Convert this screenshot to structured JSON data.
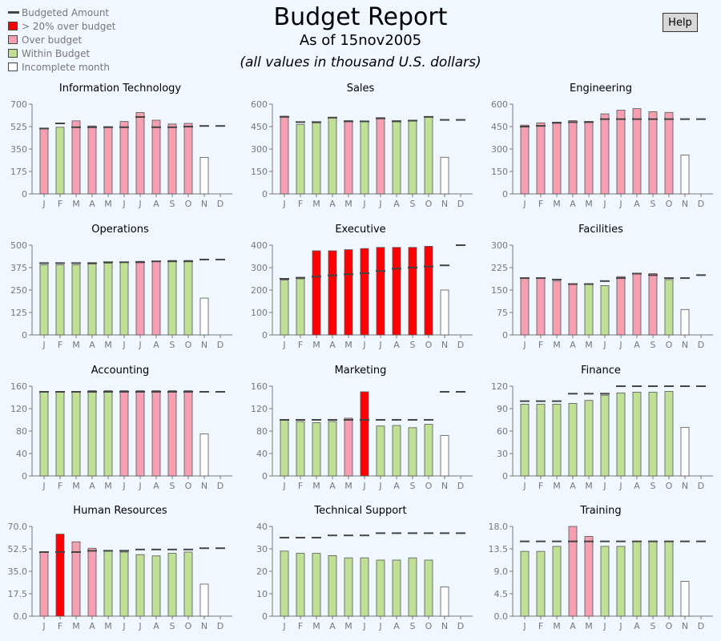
{
  "header": {
    "title": "Budget Report",
    "subtitle": "As of 15nov2005",
    "note": "(all values in thousand U.S. dollars)",
    "help_label": "Help"
  },
  "legend": [
    {
      "label": "Budgeted Amount",
      "kind": "line",
      "color": "#444444"
    },
    {
      "label": "> 20% over budget",
      "kind": "box",
      "color": "#ff0000"
    },
    {
      "label": "Over budget",
      "kind": "box",
      "color": "#f4a0b0"
    },
    {
      "label": "Within Budget",
      "kind": "box",
      "color": "#c0e098"
    },
    {
      "label": "Incomplete month",
      "kind": "box",
      "color": "#ffffff"
    }
  ],
  "chart_data": [
    {
      "type": "bar",
      "title": "Information Technology",
      "categories": [
        "J",
        "F",
        "M",
        "A",
        "M",
        "J",
        "J",
        "A",
        "S",
        "O",
        "N",
        "D"
      ],
      "yticks": [
        "0",
        "175",
        "350",
        "525",
        "700"
      ],
      "ylim": [
        0,
        700
      ],
      "actual": [
        510,
        520,
        570,
        530,
        525,
        565,
        635,
        575,
        545,
        550,
        285,
        null
      ],
      "budget": [
        510,
        550,
        520,
        520,
        520,
        520,
        600,
        520,
        520,
        525,
        530,
        530
      ],
      "status": [
        "over",
        "within",
        "over",
        "over",
        "over",
        "over",
        "over",
        "over",
        "over",
        "over",
        "incomplete",
        null
      ]
    },
    {
      "type": "bar",
      "title": "Sales",
      "categories": [
        "J",
        "F",
        "M",
        "A",
        "M",
        "J",
        "J",
        "A",
        "S",
        "O",
        "N",
        "D"
      ],
      "yticks": [
        "0",
        "150",
        "300",
        "450",
        "600"
      ],
      "ylim": [
        0,
        600
      ],
      "actual": [
        520,
        465,
        475,
        510,
        490,
        485,
        510,
        490,
        490,
        515,
        245,
        null
      ],
      "budget": [
        515,
        480,
        480,
        510,
        485,
        485,
        505,
        485,
        490,
        515,
        495,
        495
      ],
      "status": [
        "over",
        "within",
        "within",
        "within",
        "over",
        "within",
        "over",
        "within",
        "within",
        "within",
        "incomplete",
        null
      ]
    },
    {
      "type": "bar",
      "title": "Engineering",
      "categories": [
        "J",
        "F",
        "M",
        "A",
        "M",
        "J",
        "J",
        "A",
        "S",
        "O",
        "N",
        "D"
      ],
      "yticks": [
        "0",
        "150",
        "300",
        "450",
        "600"
      ],
      "ylim": [
        0,
        600
      ],
      "actual": [
        460,
        475,
        480,
        490,
        485,
        535,
        560,
        570,
        550,
        545,
        260,
        null
      ],
      "budget": [
        450,
        455,
        475,
        480,
        480,
        500,
        500,
        500,
        500,
        500,
        500,
        500
      ],
      "status": [
        "over",
        "over",
        "over",
        "over",
        "over",
        "over",
        "over",
        "over",
        "over",
        "over",
        "incomplete",
        null
      ]
    },
    {
      "type": "bar",
      "title": "Operations",
      "categories": [
        "J",
        "F",
        "M",
        "A",
        "M",
        "J",
        "J",
        "A",
        "S",
        "O",
        "N",
        "D"
      ],
      "yticks": [
        "0",
        "125",
        "250",
        "375",
        "500"
      ],
      "ylim": [
        0,
        500
      ],
      "actual": [
        390,
        390,
        390,
        395,
        400,
        405,
        410,
        410,
        415,
        415,
        205,
        null
      ],
      "budget": [
        400,
        400,
        400,
        400,
        405,
        405,
        405,
        410,
        410,
        410,
        420,
        420
      ],
      "status": [
        "within",
        "within",
        "within",
        "within",
        "within",
        "within",
        "over",
        "over",
        "within",
        "within",
        "incomplete",
        null
      ]
    },
    {
      "type": "bar",
      "title": "Executive",
      "categories": [
        "J",
        "F",
        "M",
        "A",
        "M",
        "J",
        "J",
        "A",
        "S",
        "O",
        "N",
        "D"
      ],
      "yticks": [
        "0",
        "100",
        "200",
        "300",
        "400"
      ],
      "ylim": [
        0,
        400
      ],
      "actual": [
        245,
        250,
        375,
        375,
        380,
        385,
        390,
        390,
        390,
        395,
        200,
        null
      ],
      "budget": [
        250,
        255,
        260,
        265,
        270,
        275,
        285,
        295,
        300,
        305,
        310,
        400
      ],
      "status": [
        "within",
        "within",
        "over20",
        "over20",
        "over20",
        "over20",
        "over20",
        "over20",
        "over20",
        "over20",
        "incomplete",
        null
      ]
    },
    {
      "type": "bar",
      "title": "Facilities",
      "categories": [
        "J",
        "F",
        "M",
        "A",
        "M",
        "J",
        "J",
        "A",
        "S",
        "O",
        "N",
        "D"
      ],
      "yticks": [
        "0",
        "75",
        "150",
        "225",
        "300"
      ],
      "ylim": [
        0,
        300
      ],
      "actual": [
        190,
        190,
        180,
        170,
        170,
        165,
        195,
        205,
        205,
        185,
        85,
        null
      ],
      "budget": [
        190,
        190,
        185,
        170,
        170,
        180,
        190,
        205,
        200,
        190,
        190,
        200
      ],
      "status": [
        "over",
        "over",
        "over",
        "over",
        "within",
        "within",
        "over",
        "over",
        "over",
        "within",
        "incomplete",
        null
      ]
    },
    {
      "type": "bar",
      "title": "Accounting",
      "categories": [
        "J",
        "F",
        "M",
        "A",
        "M",
        "J",
        "J",
        "A",
        "S",
        "O",
        "N",
        "D"
      ],
      "yticks": [
        "0",
        "40",
        "80",
        "120",
        "160"
      ],
      "ylim": [
        0,
        160
      ],
      "actual": [
        150,
        150,
        150,
        152,
        152,
        152,
        152,
        152,
        152,
        152,
        75,
        null
      ],
      "budget": [
        150,
        150,
        150,
        150,
        150,
        150,
        150,
        150,
        150,
        150,
        150,
        150
      ],
      "status": [
        "within",
        "within",
        "within",
        "within",
        "within",
        "over",
        "over",
        "over",
        "over",
        "over",
        "incomplete",
        null
      ]
    },
    {
      "type": "bar",
      "title": "Marketing",
      "categories": [
        "J",
        "F",
        "M",
        "A",
        "M",
        "J",
        "J",
        "A",
        "S",
        "O",
        "N",
        "D"
      ],
      "yticks": [
        "0",
        "40",
        "80",
        "120",
        "160"
      ],
      "ylim": [
        0,
        160
      ],
      "actual": [
        100,
        97,
        95,
        97,
        103,
        150,
        89,
        90,
        86,
        92,
        72,
        null
      ],
      "budget": [
        100,
        100,
        100,
        100,
        100,
        100,
        100,
        100,
        100,
        100,
        150,
        150
      ],
      "status": [
        "within",
        "within",
        "within",
        "within",
        "over",
        "over20",
        "within",
        "within",
        "within",
        "within",
        "incomplete",
        null
      ]
    },
    {
      "type": "bar",
      "title": "Finance",
      "categories": [
        "J",
        "F",
        "M",
        "A",
        "M",
        "J",
        "J",
        "A",
        "S",
        "O",
        "N",
        "D"
      ],
      "yticks": [
        "0",
        "30",
        "60",
        "90",
        "120"
      ],
      "ylim": [
        0,
        120
      ],
      "actual": [
        96,
        96,
        96,
        97,
        101,
        108,
        111,
        112,
        112,
        113,
        65,
        null
      ],
      "budget": [
        100,
        100,
        100,
        110,
        110,
        110,
        120,
        120,
        120,
        120,
        120,
        120
      ],
      "status": [
        "within",
        "within",
        "within",
        "within",
        "within",
        "within",
        "within",
        "within",
        "within",
        "within",
        "incomplete",
        null
      ]
    },
    {
      "type": "bar",
      "title": "Human Resources",
      "categories": [
        "J",
        "F",
        "M",
        "A",
        "M",
        "J",
        "J",
        "A",
        "S",
        "O",
        "N",
        "D"
      ],
      "yticks": [
        "0.0",
        "17.5",
        "35.0",
        "52.5",
        "70.0"
      ],
      "ylim": [
        0,
        70
      ],
      "actual": [
        50,
        64,
        58,
        53,
        51,
        50,
        48,
        47,
        49,
        50,
        25,
        null
      ],
      "budget": [
        50,
        50,
        50,
        51,
        51,
        51,
        52,
        52,
        52,
        52,
        53,
        53
      ],
      "status": [
        "over",
        "over20",
        "over",
        "over",
        "within",
        "within",
        "within",
        "within",
        "within",
        "within",
        "incomplete",
        null
      ]
    },
    {
      "type": "bar",
      "title": "Technical Support",
      "categories": [
        "J",
        "F",
        "M",
        "A",
        "M",
        "J",
        "J",
        "A",
        "S",
        "O",
        "N",
        "D"
      ],
      "yticks": [
        "0",
        "10",
        "20",
        "30",
        "40"
      ],
      "ylim": [
        0,
        40
      ],
      "actual": [
        29,
        28,
        28,
        27,
        26,
        26,
        25,
        25,
        26,
        25,
        13,
        null
      ],
      "budget": [
        35,
        35,
        35,
        36,
        36,
        36,
        37,
        37,
        37,
        37,
        37,
        37
      ],
      "status": [
        "within",
        "within",
        "within",
        "within",
        "within",
        "within",
        "within",
        "within",
        "within",
        "within",
        "incomplete",
        null
      ]
    },
    {
      "type": "bar",
      "title": "Training",
      "categories": [
        "J",
        "F",
        "M",
        "A",
        "M",
        "J",
        "J",
        "A",
        "S",
        "O",
        "N",
        "D"
      ],
      "yticks": [
        "0.0",
        "4.5",
        "9.0",
        "13.5",
        "18.0"
      ],
      "ylim": [
        0,
        18
      ],
      "actual": [
        13,
        13,
        14,
        18,
        16,
        14,
        14,
        15,
        15,
        15,
        7,
        null
      ],
      "budget": [
        15,
        15,
        15,
        15,
        15,
        15,
        15,
        15,
        15,
        15,
        15,
        15
      ],
      "status": [
        "within",
        "within",
        "within",
        "over",
        "over",
        "within",
        "within",
        "within",
        "within",
        "within",
        "incomplete",
        null
      ]
    }
  ],
  "colors": {
    "over20": "#ff0000",
    "over": "#f4a0b0",
    "within": "#c0e098",
    "incomplete": "#ffffff",
    "budget": "#444444",
    "axis": "#777777"
  }
}
